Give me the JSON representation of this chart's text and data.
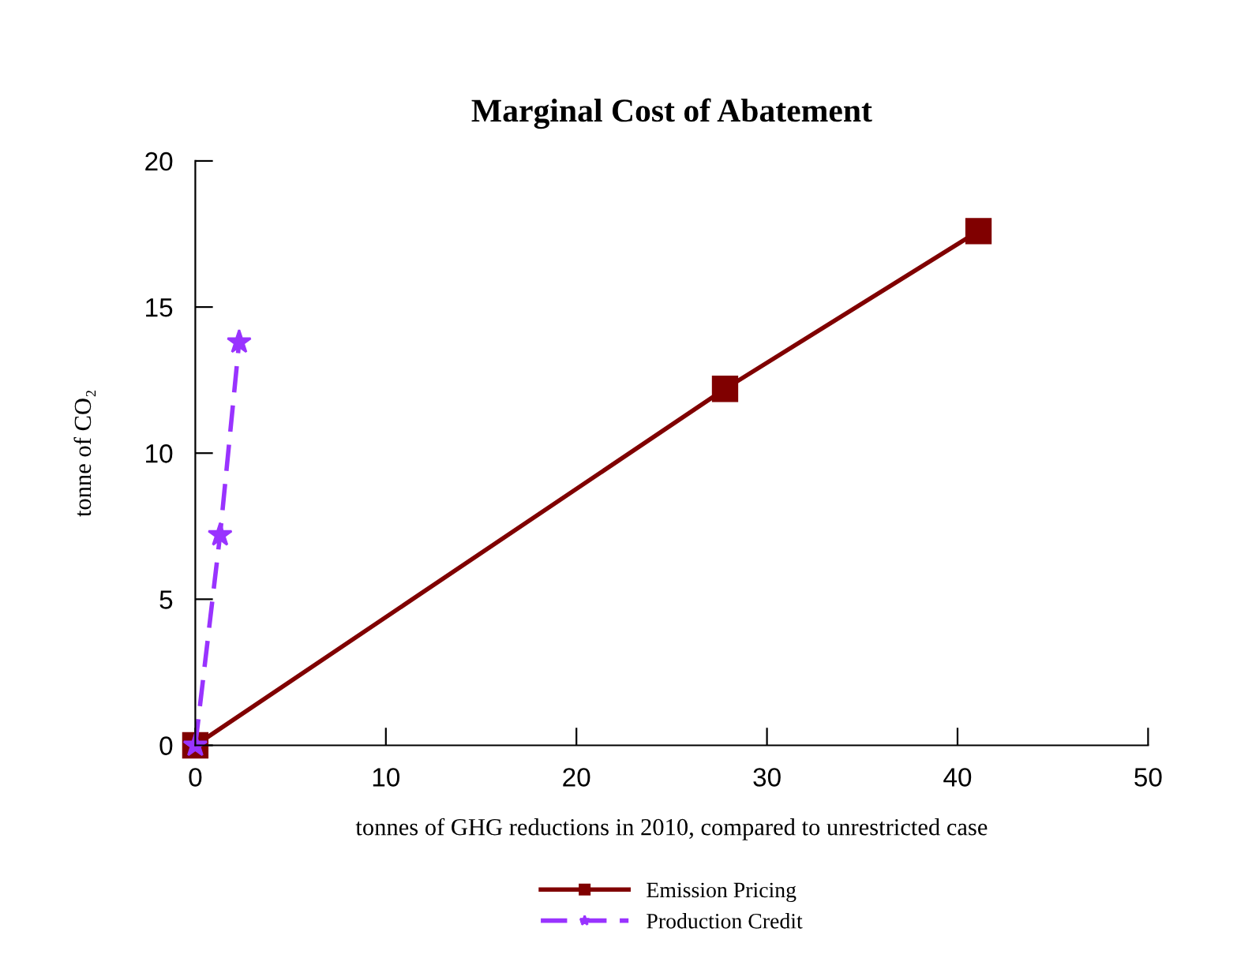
{
  "chart_data": {
    "type": "line",
    "title": "Marginal Cost of Abatement",
    "xlabel": "tonnes of GHG reductions in 2010, compared to unrestricted case",
    "ylabel": "tonne of CO₂",
    "series": [
      {
        "name": "Emission Pricing",
        "color": "#800000",
        "marker": "square",
        "line_style": "solid",
        "x": [
          0,
          27.8,
          41.1
        ],
        "values": [
          0,
          12.2,
          17.6
        ]
      },
      {
        "name": "Production Credit",
        "color": "#9933ff",
        "marker": "star",
        "line_style": "dashed",
        "x": [
          0,
          1.3,
          2.3
        ],
        "values": [
          0,
          7.2,
          13.8
        ]
      }
    ],
    "xlim": [
      0,
      50
    ],
    "xticks": [
      0,
      10,
      20,
      30,
      40,
      50
    ],
    "ylim": [
      0,
      20
    ],
    "yticks": [
      0,
      5,
      10,
      15,
      20
    ],
    "grid": false,
    "legend": "bottom"
  }
}
